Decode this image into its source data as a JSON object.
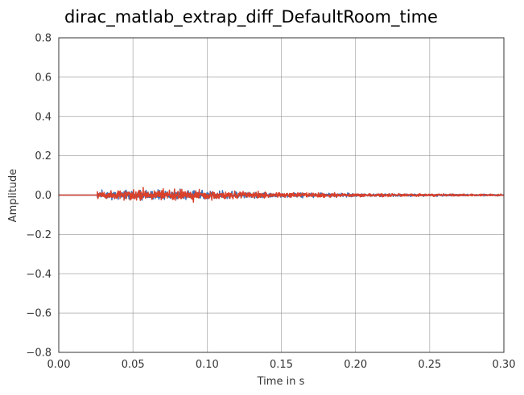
{
  "chart_data": {
    "type": "line",
    "title": "dirac_matlab_extrap_diff_DefaultRoom_time",
    "xlabel": "Time in s",
    "ylabel": "Amplitude",
    "xlim": [
      0.0,
      0.3
    ],
    "ylim": [
      -0.8,
      0.8
    ],
    "x_ticks": [
      "0.00",
      "0.05",
      "0.10",
      "0.15",
      "0.20",
      "0.25",
      "0.30"
    ],
    "y_ticks": [
      "0.8",
      "0.6",
      "0.4",
      "0.2",
      "0.0",
      "−0.2",
      "−0.4",
      "−0.6",
      "−0.8"
    ],
    "grid": true,
    "legend": "none",
    "series": [
      {
        "color": "#3b6fb6",
        "onset": 0.026,
        "envelope": [
          {
            "x": 0.026,
            "amp": 0.028
          },
          {
            "x": 0.05,
            "amp": 0.038
          },
          {
            "x": 0.07,
            "amp": 0.04
          },
          {
            "x": 0.1,
            "amp": 0.036
          },
          {
            "x": 0.13,
            "amp": 0.024
          },
          {
            "x": 0.16,
            "amp": 0.018
          },
          {
            "x": 0.2,
            "amp": 0.014
          },
          {
            "x": 0.25,
            "amp": 0.01
          },
          {
            "x": 0.3,
            "amp": 0.007
          }
        ]
      },
      {
        "color": "#d9412b",
        "onset": 0.026,
        "envelope": [
          {
            "x": 0.026,
            "amp": 0.03
          },
          {
            "x": 0.05,
            "amp": 0.045
          },
          {
            "x": 0.07,
            "amp": 0.05
          },
          {
            "x": 0.1,
            "amp": 0.04
          },
          {
            "x": 0.13,
            "amp": 0.026
          },
          {
            "x": 0.16,
            "amp": 0.02
          },
          {
            "x": 0.2,
            "amp": 0.015
          },
          {
            "x": 0.25,
            "amp": 0.011
          },
          {
            "x": 0.3,
            "amp": 0.008
          }
        ]
      }
    ]
  }
}
